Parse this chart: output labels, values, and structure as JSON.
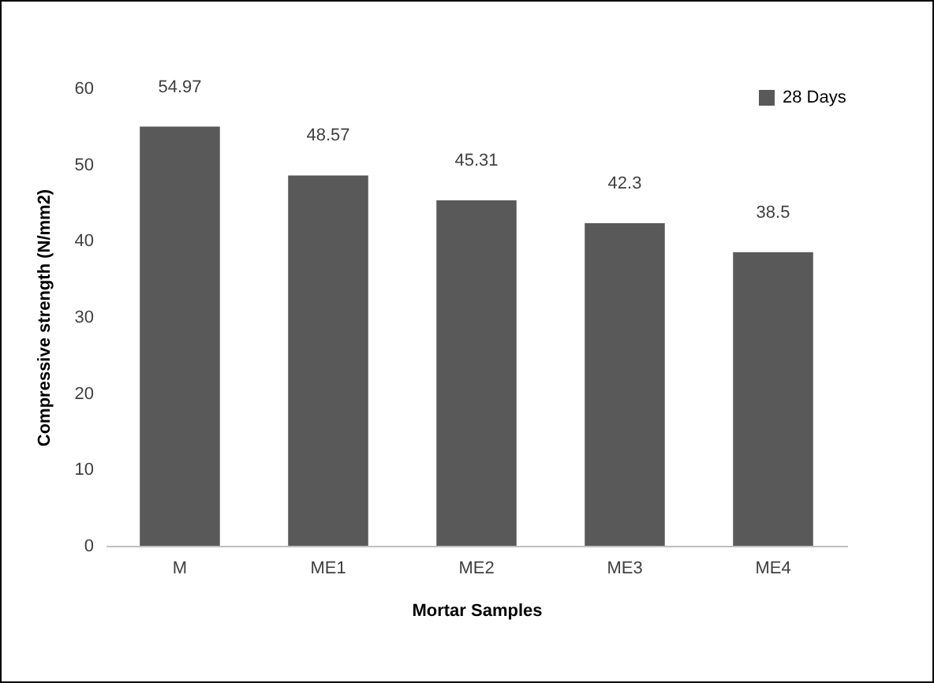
{
  "chart_data": {
    "type": "bar",
    "xlabel": "Mortar Samples",
    "ylabel": "Compressive strength (N/mm2)",
    "categories": [
      "M",
      "ME1",
      "ME2",
      "ME3",
      "ME4"
    ],
    "series": [
      {
        "name": "28 Days",
        "color": "#595959",
        "values": [
          54.97,
          48.57,
          45.31,
          42.3,
          38.5
        ]
      }
    ],
    "ylim": [
      0,
      60
    ],
    "yticks": [
      0,
      10,
      20,
      30,
      40,
      50,
      60
    ],
    "data_labels": true,
    "legend": "top right",
    "grid": false
  }
}
